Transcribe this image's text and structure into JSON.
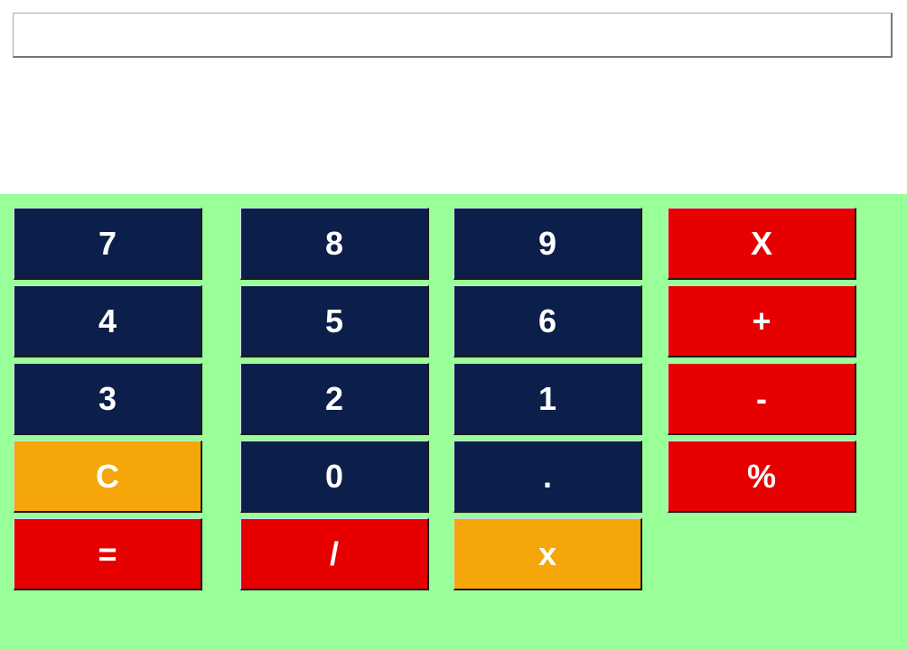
{
  "display": {
    "value": ""
  },
  "keys": {
    "k7": "7",
    "k8": "8",
    "k9": "9",
    "multiply_upper": "X",
    "k4": "4",
    "k5": "5",
    "k6": "6",
    "plus": "+",
    "k3": "3",
    "k2": "2",
    "k1": "1",
    "minus": "-",
    "clear": "C",
    "k0": "0",
    "dot": ".",
    "percent": "%",
    "equals": "=",
    "divide": "/",
    "backspace_x": "x"
  },
  "colors": {
    "keypad_background": "#99ff99",
    "digit_key": "#0c1f4a",
    "operator_key": "#e60000",
    "special_key": "#f5a608",
    "key_text": "#ffffff"
  }
}
